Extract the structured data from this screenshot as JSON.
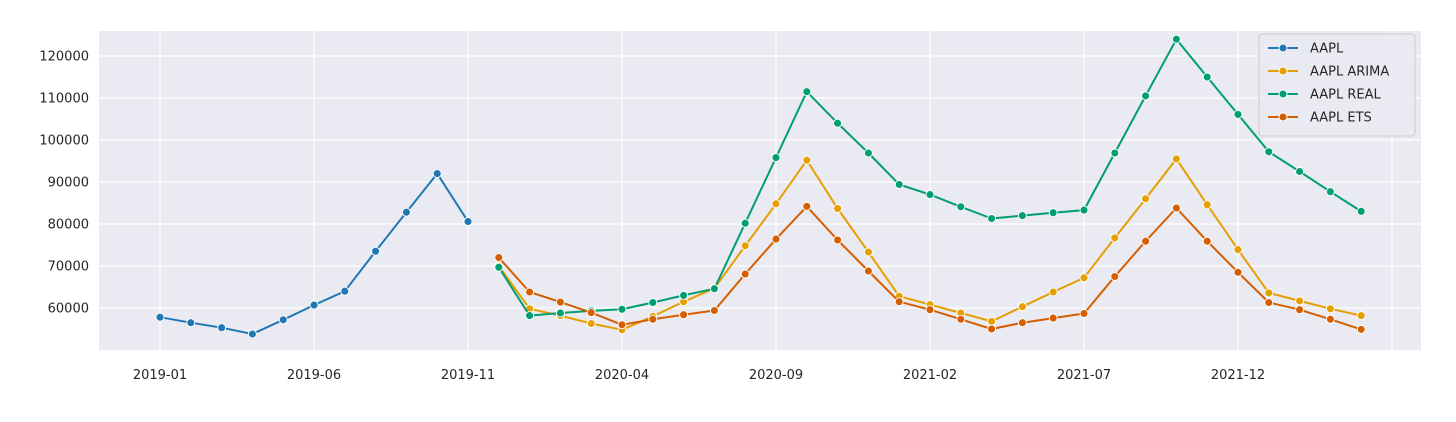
{
  "chart_data": {
    "type": "line",
    "title": "",
    "xlabel": "",
    "ylabel": "",
    "ylim": [
      50000,
      127000
    ],
    "yticks": [
      60000,
      70000,
      80000,
      90000,
      100000,
      110000,
      120000
    ],
    "xticks": [
      "2019-01",
      "2019-06",
      "2019-11",
      "2020-04",
      "2020-09",
      "2021-02",
      "2021-07",
      "2021-12"
    ],
    "grid": true,
    "legend_position": "top-right",
    "style": "seaborn-darkgrid",
    "background_color": "#eaeaf2",
    "series": [
      {
        "name": "AAPL",
        "color": "#1f77b4",
        "x": [
          "2019-01",
          "2019-02",
          "2019-03",
          "2019-04",
          "2019-05",
          "2019-06",
          "2019-07",
          "2019-08",
          "2019-09",
          "2019-10",
          "2019-11"
        ],
        "y": [
          57800,
          56500,
          55300,
          53800,
          57200,
          60700,
          64000,
          73500,
          82800,
          92000,
          80600
        ]
      },
      {
        "name": "AAPL ARIMA",
        "color": "#e69f00",
        "x": [
          "2019-12",
          "2020-01",
          "2020-02",
          "2020-03",
          "2020-04",
          "2020-05",
          "2020-06",
          "2020-07",
          "2020-08",
          "2020-09",
          "2020-10",
          "2020-11",
          "2020-12",
          "2021-01",
          "2021-02",
          "2021-03",
          "2021-04",
          "2021-05",
          "2021-06",
          "2021-07",
          "2021-08",
          "2021-09",
          "2021-10",
          "2021-11",
          "2021-12",
          "2022-01",
          "2022-02",
          "2022-03",
          "2022-04"
        ],
        "y": [
          70000,
          59800,
          58200,
          56300,
          54800,
          58000,
          61500,
          64700,
          74800,
          84800,
          95200,
          83700,
          73300,
          62800,
          60800,
          58800,
          56800,
          60300,
          63800,
          67200,
          76700,
          86000,
          95500,
          84600,
          73900,
          63600,
          61700,
          59800,
          58200
        ]
      },
      {
        "name": "AAPL REAL",
        "color": "#009e73",
        "x": [
          "2019-12",
          "2020-01",
          "2020-02",
          "2020-03",
          "2020-04",
          "2020-05",
          "2020-06",
          "2020-07",
          "2020-08",
          "2020-09",
          "2020-10",
          "2020-11",
          "2020-12",
          "2021-01",
          "2021-02",
          "2021-03",
          "2021-04",
          "2021-05",
          "2021-06",
          "2021-07",
          "2021-08",
          "2021-09",
          "2021-10",
          "2021-11",
          "2021-12",
          "2022-01",
          "2022-02",
          "2022-03",
          "2022-04"
        ],
        "y": [
          69700,
          58200,
          58800,
          59300,
          59700,
          61300,
          63000,
          64600,
          80200,
          95800,
          111500,
          104000,
          96900,
          89400,
          87000,
          84100,
          81300,
          82000,
          82700,
          83300,
          96900,
          110500,
          124000,
          115000,
          106100,
          97200,
          92500,
          87700,
          83000
        ]
      },
      {
        "name": "AAPL ETS",
        "color": "#d55e00",
        "x": [
          "2019-12",
          "2020-01",
          "2020-02",
          "2020-03",
          "2020-04",
          "2020-05",
          "2020-06",
          "2020-07",
          "2020-08",
          "2020-09",
          "2020-10",
          "2020-11",
          "2020-12",
          "2021-01",
          "2021-02",
          "2021-03",
          "2021-04",
          "2021-05",
          "2021-06",
          "2021-07",
          "2021-08",
          "2021-09",
          "2021-10",
          "2021-11",
          "2021-12",
          "2022-01",
          "2022-02",
          "2022-03",
          "2022-04"
        ],
        "y": [
          72000,
          63800,
          61400,
          58900,
          56000,
          57300,
          58400,
          59400,
          68100,
          76400,
          84200,
          76200,
          68800,
          61500,
          59600,
          57300,
          55000,
          56500,
          57600,
          58700,
          67500,
          75900,
          83800,
          75900,
          68500,
          61300,
          59600,
          57300,
          54900
        ]
      }
    ]
  }
}
